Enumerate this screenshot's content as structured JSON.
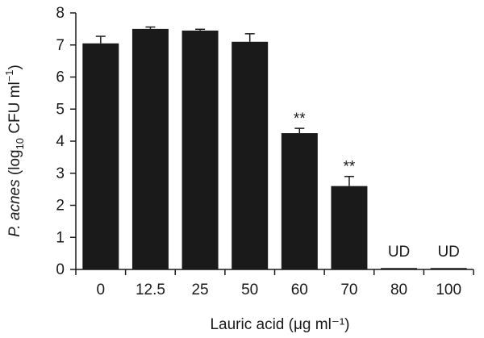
{
  "chart_data": {
    "type": "bar",
    "categories": [
      "0",
      "12.5",
      "25",
      "50",
      "60",
      "70",
      "80",
      "100"
    ],
    "values": [
      7.05,
      7.5,
      7.45,
      7.1,
      4.25,
      2.6,
      0,
      0
    ],
    "errors": [
      0.22,
      0.06,
      0.04,
      0.25,
      0.15,
      0.3,
      0,
      0
    ],
    "annotations": [
      "",
      "",
      "",
      "",
      "**",
      "**",
      "UD",
      "UD"
    ],
    "ylim": [
      0,
      8
    ],
    "yticks": [
      0,
      1,
      2,
      3,
      4,
      5,
      6,
      7,
      8
    ],
    "xlabel": "Lauric acid (μg ml⁻¹)",
    "ylabel": {
      "italic": "P. acnes",
      "pre": " (log",
      "sub": "10",
      "post": " CFU ml",
      "sup": "−1",
      "close": ")"
    },
    "grid": false,
    "bar_color": "#1a1a1a"
  }
}
